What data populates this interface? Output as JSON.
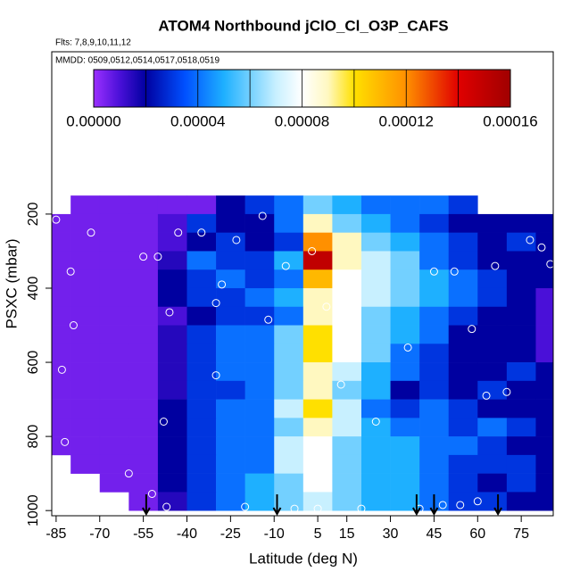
{
  "chart_data": {
    "type": "heatmap",
    "title": "ATOM4 Northbound jClO_Cl_O3P_CAFS",
    "subtitle": "Flts: 7,8,9,10,11,12",
    "annotation": "MMDD: 0509,0512,0514,0517,0518,0519",
    "x_label": "Latitude (deg N)",
    "y_label": "PSXC (mbar)",
    "xlim": [
      -86.5,
      86
    ],
    "ylim": [
      1014,
      -238
    ],
    "xticks": [
      -85,
      -70,
      -55,
      -40,
      -25,
      -10,
      5,
      15,
      30,
      45,
      60,
      75
    ],
    "yticks": [
      200,
      400,
      600,
      800,
      1000
    ],
    "x": [
      -85,
      -75,
      -65,
      -55,
      -45,
      -35,
      -25,
      -15,
      -5,
      5,
      15,
      25,
      35,
      45,
      55,
      65,
      75,
      85
    ],
    "y": [
      175,
      225,
      275,
      325,
      375,
      425,
      475,
      525,
      575,
      625,
      675,
      725,
      775,
      825,
      875,
      925,
      975
    ],
    "z": [
      [
        null,
        5e-06,
        5e-06,
        5e-06,
        5e-06,
        5e-06,
        2e-05,
        3e-05,
        4e-05,
        6e-05,
        5e-05,
        4e-05,
        4e-05,
        4e-05,
        3e-05,
        null,
        null,
        null
      ],
      [
        5e-06,
        5e-06,
        5e-06,
        5e-06,
        1e-05,
        3e-05,
        2e-05,
        2e-05,
        4e-05,
        9e-05,
        6e-05,
        5e-05,
        4e-05,
        3e-05,
        2e-05,
        2e-05,
        2e-05,
        2e-05
      ],
      [
        5e-06,
        5e-06,
        5e-06,
        5e-06,
        1e-05,
        2e-05,
        3e-05,
        2e-05,
        3e-05,
        0.00012,
        9e-05,
        6e-05,
        5e-05,
        4e-05,
        3e-05,
        2e-05,
        3e-05,
        2e-05
      ],
      [
        5e-06,
        5e-06,
        5e-06,
        5e-06,
        1.5e-05,
        4e-05,
        3e-05,
        3e-05,
        5e-05,
        0.00015,
        9e-05,
        7e-05,
        6e-05,
        4e-05,
        3e-05,
        2e-05,
        2e-05,
        2e-05
      ],
      [
        5e-06,
        5e-06,
        5e-06,
        5e-06,
        2e-05,
        3e-05,
        4e-05,
        3e-05,
        4e-05,
        0.00011,
        8e-05,
        7e-05,
        6e-05,
        5e-05,
        4e-05,
        3e-05,
        2e-05,
        2e-05
      ],
      [
        5e-06,
        5e-06,
        5e-06,
        5e-06,
        2e-05,
        3e-05,
        3e-05,
        4e-05,
        5e-05,
        9e-05,
        8e-05,
        7e-05,
        6e-05,
        5e-05,
        4e-05,
        3e-05,
        2e-05,
        1e-05
      ],
      [
        5e-06,
        5e-06,
        5e-06,
        5e-06,
        1e-05,
        2e-05,
        3e-05,
        3e-05,
        4e-05,
        9e-05,
        8e-05,
        6e-05,
        5e-05,
        4e-05,
        3e-05,
        2e-05,
        2e-05,
        1e-05
      ],
      [
        5e-06,
        5e-06,
        5e-06,
        5e-06,
        1.5e-05,
        3e-05,
        4e-05,
        4e-05,
        6e-05,
        0.0001,
        8e-05,
        6e-05,
        5e-05,
        4e-05,
        2e-05,
        2e-05,
        2e-05,
        1e-05
      ],
      [
        5e-06,
        5e-06,
        5e-06,
        5e-06,
        1.5e-05,
        3e-05,
        4e-05,
        4e-05,
        6e-05,
        0.0001,
        8e-05,
        6e-05,
        4e-05,
        3e-05,
        2e-05,
        2e-05,
        2e-05,
        1e-05
      ],
      [
        5e-06,
        5e-06,
        5e-06,
        5e-06,
        1.5e-05,
        3e-05,
        4e-05,
        4e-05,
        6e-05,
        9e-05,
        7e-05,
        5e-05,
        4e-05,
        3e-05,
        2e-05,
        2e-05,
        3e-05,
        2e-05
      ],
      [
        5e-06,
        5e-06,
        5e-06,
        5e-06,
        1.5e-05,
        3e-05,
        3e-05,
        4e-05,
        6e-05,
        9e-05,
        6e-05,
        5e-05,
        2e-05,
        3e-05,
        2e-05,
        3e-05,
        2e-05,
        2e-05
      ],
      [
        5e-06,
        5e-06,
        5e-06,
        5e-06,
        2e-05,
        3e-05,
        4e-05,
        4e-05,
        7e-05,
        0.0001,
        7e-05,
        4e-05,
        3e-05,
        4e-05,
        3e-05,
        2e-05,
        2e-05,
        2e-05
      ],
      [
        5e-06,
        5e-06,
        5e-06,
        5e-06,
        2e-05,
        3e-05,
        4e-05,
        4e-05,
        6e-05,
        9e-05,
        7e-05,
        5e-05,
        4e-05,
        4e-05,
        3e-05,
        4e-05,
        3e-05,
        2e-05
      ],
      [
        5e-06,
        5e-06,
        5e-06,
        5e-06,
        2e-05,
        3e-05,
        4e-05,
        4e-05,
        7e-05,
        8e-05,
        6e-05,
        5e-05,
        5e-05,
        4e-05,
        4e-05,
        3e-05,
        2e-05,
        2e-05
      ],
      [
        null,
        5e-06,
        5e-06,
        5e-06,
        2e-05,
        3e-05,
        4e-05,
        4e-05,
        7e-05,
        8e-05,
        6e-05,
        5e-05,
        5e-05,
        4e-05,
        3e-05,
        3e-05,
        3e-05,
        2e-05
      ],
      [
        null,
        null,
        5e-06,
        5e-06,
        2e-05,
        3e-05,
        4e-05,
        5e-05,
        6e-05,
        8e-05,
        6e-05,
        5e-05,
        5e-05,
        4e-05,
        3e-05,
        2e-05,
        3e-05,
        2e-05
      ],
      [
        null,
        null,
        null,
        5e-06,
        1.5e-05,
        3e-05,
        4e-05,
        5e-05,
        6e-05,
        7e-05,
        6e-05,
        5e-05,
        5e-05,
        4e-05,
        3e-05,
        3e-05,
        2e-05,
        2e-05
      ]
    ],
    "samples": {
      "x": [
        -85,
        -73,
        -80,
        -83,
        -55,
        -50,
        -46,
        -30,
        -23,
        -12,
        -35,
        -43,
        -28,
        -14,
        -79,
        -48,
        -30,
        -82,
        -60,
        -52,
        -47,
        -20,
        -3,
        5,
        20,
        40,
        48,
        54,
        60,
        63,
        70,
        78,
        82,
        85,
        52,
        45,
        66,
        58,
        36,
        25,
        13,
        3,
        -6,
        8
      ],
      "y": [
        215,
        250,
        355,
        620,
        315,
        315,
        465,
        440,
        270,
        485,
        250,
        250,
        390,
        205,
        500,
        760,
        635,
        815,
        900,
        955,
        990,
        990,
        995,
        995,
        995,
        995,
        985,
        985,
        975,
        690,
        680,
        270,
        290,
        335,
        355,
        355,
        340,
        510,
        560,
        760,
        660,
        300,
        340,
        450
      ],
      "color": "#ffffff"
    },
    "arrows": {
      "x": [
        -54,
        -9,
        39,
        45,
        67
      ],
      "color": "#000000"
    },
    "colorbar": {
      "lim": [
        0,
        0.00016
      ],
      "ticks": [
        {
          "value": 0,
          "label": "0.00000"
        },
        {
          "value": 4e-05,
          "label": "0.00004"
        },
        {
          "value": 8e-05,
          "label": "0.00008"
        },
        {
          "value": 0.00012,
          "label": "0.00012"
        },
        {
          "value": 0.00016,
          "label": "0.00016"
        }
      ],
      "minor_ticks": [
        2e-05,
        6e-05,
        0.0001,
        0.00014
      ],
      "colors": [
        {
          "value": 0,
          "color": "#9b30ff"
        },
        {
          "value": 1e-05,
          "color": "#4a10d8"
        },
        {
          "value": 2e-05,
          "color": "#0000a0"
        },
        {
          "value": 3.5e-05,
          "color": "#0050ff"
        },
        {
          "value": 5e-05,
          "color": "#1eb0ff"
        },
        {
          "value": 7e-05,
          "color": "#c8f0ff"
        },
        {
          "value": 8e-05,
          "color": "#ffffff"
        },
        {
          "value": 9e-05,
          "color": "#fff8c0"
        },
        {
          "value": 0.0001,
          "color": "#ffe000"
        },
        {
          "value": 0.00012,
          "color": "#ff9000"
        },
        {
          "value": 0.00014,
          "color": "#e00000"
        },
        {
          "value": 0.00016,
          "color": "#a00000"
        }
      ]
    }
  }
}
